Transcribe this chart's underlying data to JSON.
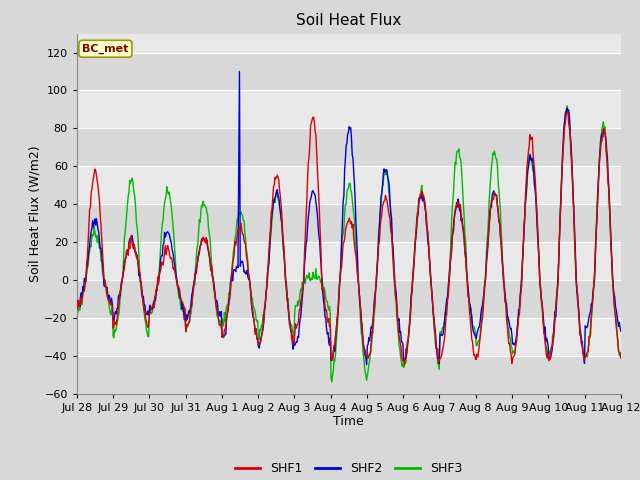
{
  "title": "Soil Heat Flux",
  "xlabel": "Time",
  "ylabel": "Soil Heat Flux (W/m2)",
  "ylim": [
    -60,
    130
  ],
  "yticks": [
    -60,
    -40,
    -20,
    0,
    20,
    40,
    60,
    80,
    100,
    120
  ],
  "fig_bg_color": "#d8d8d8",
  "plot_bg_color": "#e8e8e8",
  "band_color_light": "#f0f0f0",
  "band_color_dark": "#d8d8d8",
  "grid_color": "#ffffff",
  "shf1_color": "#dd0000",
  "shf2_color": "#0000dd",
  "shf3_color": "#00bb00",
  "legend_label1": "SHF1",
  "legend_label2": "SHF2",
  "legend_label3": "SHF3",
  "bc_met_label": "BC_met",
  "n_days": 15,
  "n_per_day": 48,
  "tick_labels": [
    "Jul 28",
    "Jul 29",
    "Jul 30",
    "Jul 31",
    "Aug 1",
    "Aug 2",
    "Aug 3",
    "Aug 4",
    "Aug 5",
    "Aug 6",
    "Aug 7",
    "Aug 8",
    "Aug 9",
    "Aug 10",
    "Aug 11",
    "Aug 12"
  ],
  "shf1_peaks": [
    57,
    20,
    16,
    22,
    28,
    55,
    85,
    32,
    44,
    47,
    41,
    46,
    75,
    88,
    79,
    83
  ],
  "shf1_troughs": [
    -15,
    -25,
    -17,
    -25,
    -30,
    -34,
    -25,
    -42,
    -42,
    -43,
    -42,
    -41,
    -42,
    -42,
    -41,
    -42
  ],
  "shf2_peaks": [
    31,
    21,
    25,
    22,
    8,
    46,
    47,
    80,
    59,
    45,
    41,
    47,
    65,
    91,
    80,
    50
  ],
  "shf2_troughs": [
    -12,
    -20,
    -16,
    -20,
    -31,
    -35,
    -35,
    -43,
    -33,
    -43,
    -30,
    -28,
    -36,
    -41,
    -26,
    -27
  ],
  "shf3_peaks": [
    25,
    52,
    47,
    41,
    36,
    45,
    2,
    50,
    57,
    47,
    69,
    68,
    65,
    91,
    83,
    55
  ],
  "shf3_troughs": [
    -17,
    -30,
    -18,
    -25,
    -22,
    -29,
    -15,
    -52,
    -46,
    -46,
    -29,
    -35,
    -40,
    -39,
    -41,
    -42
  ],
  "shf2_spike_day": 4,
  "shf2_spike_val": 110,
  "title_fontsize": 11,
  "axis_fontsize": 9,
  "tick_fontsize": 8,
  "linewidth": 1.0
}
